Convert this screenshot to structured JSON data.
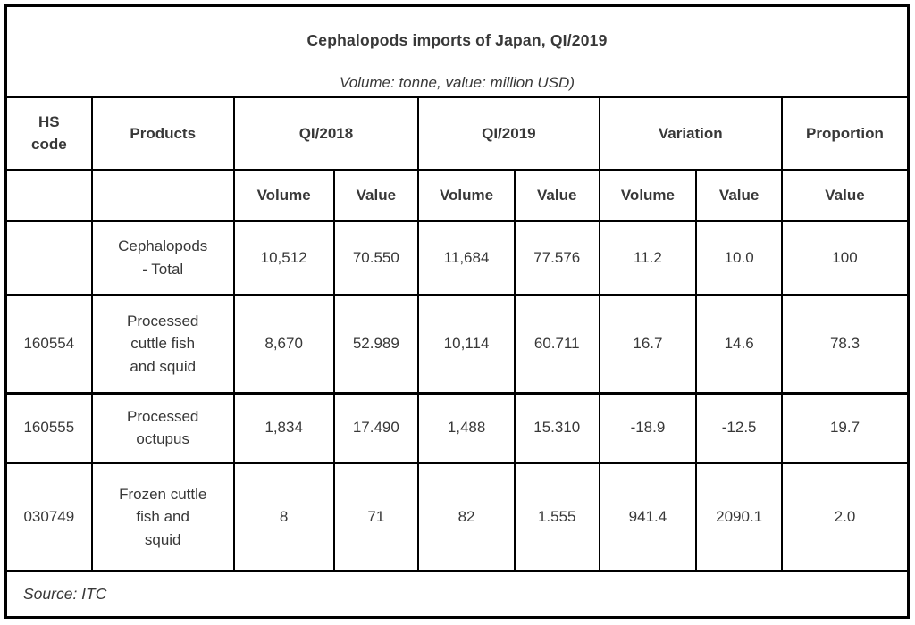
{
  "colors": {
    "text": "#383838",
    "border": "#000000",
    "background": "#ffffff"
  },
  "title": "Cephalopods imports of Japan, QI/2019",
  "subtitle": "Volume: tonne, value: million USD)",
  "table": {
    "header": {
      "hs_code": "HS code",
      "products": "Products",
      "q1_2018": "QI/2018",
      "q1_2019": "QI/2019",
      "variation": "Variation",
      "proportion": "Proportion"
    },
    "sub_headers": [
      "Volume",
      "Value",
      "Volume",
      "Value",
      "Volume",
      "Value",
      "Value"
    ],
    "rows": [
      {
        "hs_code": "",
        "product": "Cephalopods - Total",
        "q1_2018_volume": "10,512",
        "q1_2018_value": "70.550",
        "q1_2019_volume": "11,684",
        "q1_2019_value": "77.576",
        "variation_volume": "11.2",
        "variation_value": "10.0",
        "proportion": "100"
      },
      {
        "hs_code": "160554",
        "product": "Processed cuttle fish and squid",
        "q1_2018_volume": "8,670",
        "q1_2018_value": "52.989",
        "q1_2019_volume": "10,114",
        "q1_2019_value": "60.711",
        "variation_volume": "16.7",
        "variation_value": "14.6",
        "proportion": "78.3"
      },
      {
        "hs_code": "160555",
        "product": "Processed octupus",
        "q1_2018_volume": "1,834",
        "q1_2018_value": "17.490",
        "q1_2019_volume": "1,488",
        "q1_2019_value": "15.310",
        "variation_volume": "-18.9",
        "variation_value": "-12.5",
        "proportion": "19.7"
      },
      {
        "hs_code": "030749",
        "product": "Frozen cuttle fish and squid",
        "q1_2018_volume": "8",
        "q1_2018_value": "71",
        "q1_2019_volume": "82",
        "q1_2019_value": "1.555",
        "variation_volume": "941.4",
        "variation_value": "2090.1",
        "proportion": "2.0"
      }
    ]
  },
  "footer": {
    "source": "Source: ITC"
  },
  "chart_data": {
    "type": "table",
    "title": "Cephalopods imports of Japan, QI/2019",
    "subtitle": "Volume: tonne, value: million USD)",
    "source": "Source: ITC",
    "column_groups": [
      "HS code",
      "Products",
      "QI/2018",
      "QI/2018",
      "QI/2019",
      "QI/2019",
      "Variation",
      "Variation",
      "Proportion"
    ],
    "columns": [
      "HS code",
      "Products",
      "QI/2018 Volume",
      "QI/2018 Value",
      "QI/2019 Volume",
      "QI/2019 Value",
      "Variation Volume",
      "Variation Value",
      "Proportion Value"
    ],
    "rows": [
      [
        "",
        "Cephalopods - Total",
        "10,512",
        "70.550",
        "11,684",
        "77.576",
        "11.2",
        "10.0",
        "100"
      ],
      [
        "160554",
        "Processed cuttle fish and squid",
        "8,670",
        "52.989",
        "10,114",
        "60.711",
        "16.7",
        "14.6",
        "78.3"
      ],
      [
        "160555",
        "Processed octupus",
        "1,834",
        "17.490",
        "1,488",
        "15.310",
        "-18.9",
        "-12.5",
        "19.7"
      ],
      [
        "030749",
        "Frozen cuttle fish and squid",
        "8",
        "71",
        "82",
        "1.555",
        "941.4",
        "2090.1",
        "2.0"
      ]
    ]
  }
}
